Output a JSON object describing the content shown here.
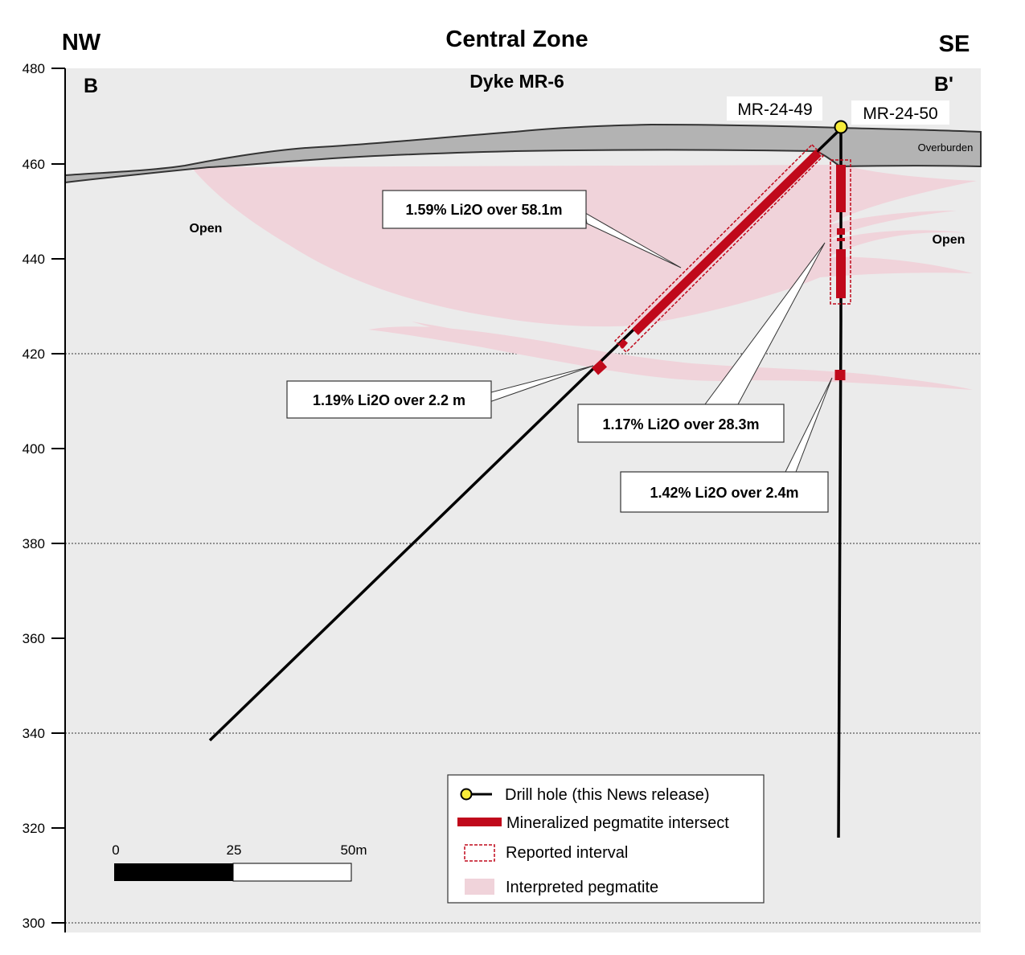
{
  "title": "Central Zone",
  "compass": {
    "left": "NW",
    "right": "SE"
  },
  "section": {
    "start": "B",
    "end": "B'",
    "name": "Dyke MR-6"
  },
  "y_axis": {
    "ticks": [
      "480",
      "460",
      "440",
      "420",
      "400",
      "380",
      "360",
      "340",
      "320",
      "300"
    ]
  },
  "holes": {
    "hole_49": "MR-24-49",
    "hole_50": "MR-24-50"
  },
  "labels": {
    "overburden": "Overburden",
    "open_left": "Open",
    "open_right": "Open"
  },
  "callouts": {
    "c1": "1.59% Li2O over 58.1m",
    "c2": "1.19% Li2O over 2.2 m",
    "c3": "1.17% Li2O over 28.3m",
    "c4": "1.42% Li2O over 2.4m"
  },
  "scale_bar": {
    "t0": "0",
    "t1": "25",
    "t2": "50m"
  },
  "legend": {
    "drill_hole": "Drill hole (this News release)",
    "mineralized": "Mineralized pegmatite intersect",
    "reported": "Reported interval",
    "interpreted": "Interpreted pegmatite"
  },
  "colors": {
    "background": "#ebebeb",
    "overburden": "#b3b3b3",
    "pegmatite": "#f0d3da",
    "mineralized": "#c0091b",
    "collar": "#f7ec3a"
  }
}
